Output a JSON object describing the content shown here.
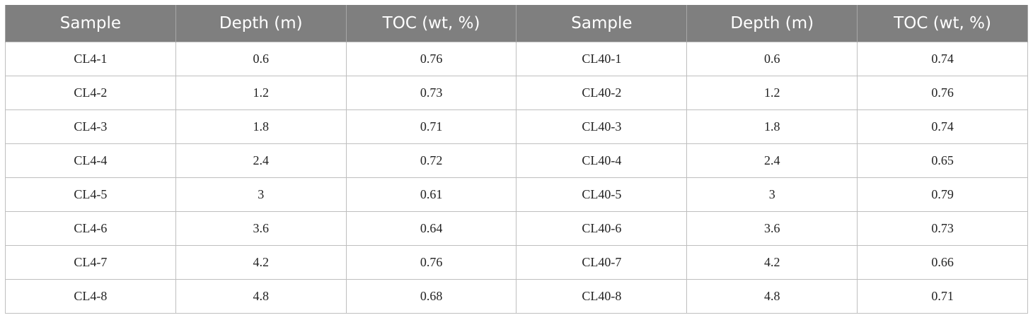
{
  "table": {
    "headers": [
      "Sample",
      "Depth (m)",
      "TOC (wt, %)",
      "Sample",
      "Depth (m)",
      "TOC (wt, %)"
    ],
    "rows": [
      [
        "CL4-1",
        "0.6",
        "0.76",
        "CL40-1",
        "0.6",
        "0.74"
      ],
      [
        "CL4-2",
        "1.2",
        "0.73",
        "CL40-2",
        "1.2",
        "0.76"
      ],
      [
        "CL4-3",
        "1.8",
        "0.71",
        "CL40-3",
        "1.8",
        "0.74"
      ],
      [
        "CL4-4",
        "2.4",
        "0.72",
        "CL40-4",
        "2.4",
        "0.65"
      ],
      [
        "CL4-5",
        "3",
        "0.61",
        "CL40-5",
        "3",
        "0.79"
      ],
      [
        "CL4-6",
        "3.6",
        "0.64",
        "CL40-6",
        "3.6",
        "0.73"
      ],
      [
        "CL4-7",
        "4.2",
        "0.76",
        "CL40-7",
        "4.2",
        "0.66"
      ],
      [
        "CL4-8",
        "4.8",
        "0.68",
        "CL40-8",
        "4.8",
        "0.71"
      ]
    ]
  }
}
